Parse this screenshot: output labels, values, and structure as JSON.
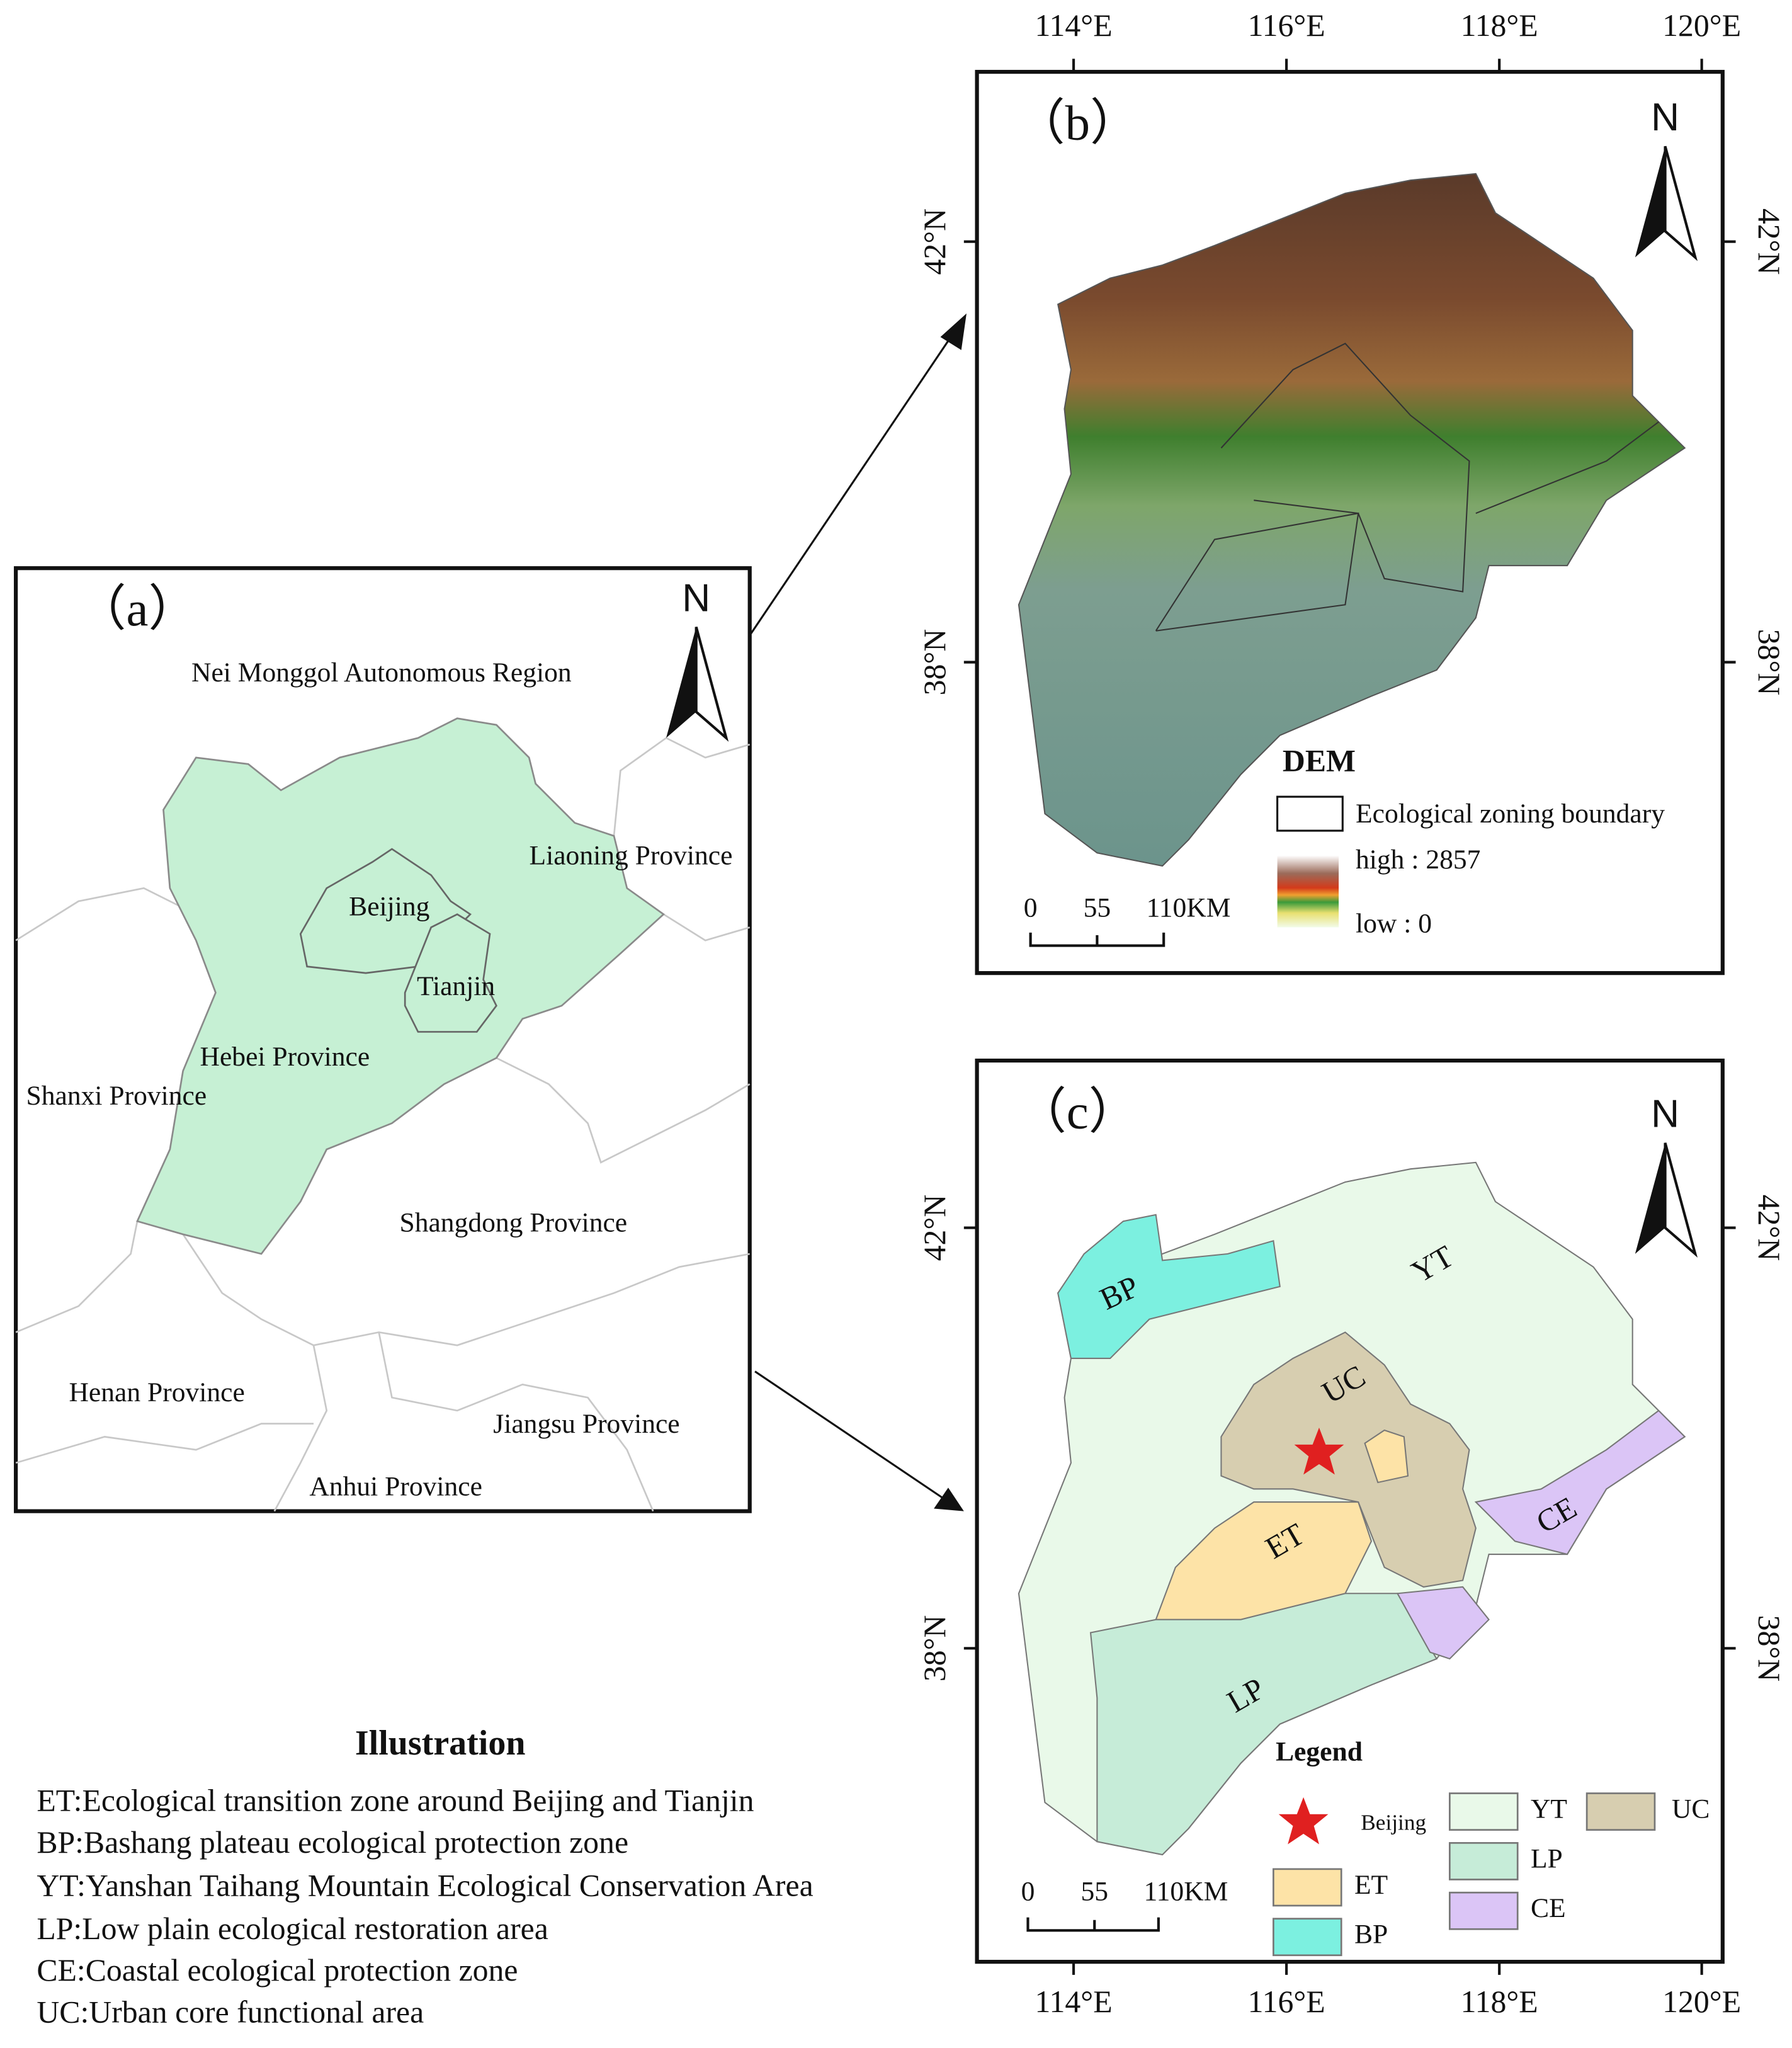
{
  "panel_a": {
    "label": "（a）",
    "north": "N",
    "regions": [
      "Nei Monggol Autonomous Region",
      "Liaoning Province",
      "Beijing",
      "Tianjin",
      "Hebei Province",
      "Shanxi Province",
      "Shangdong Province",
      "Henan Province",
      "Jiangsu Province",
      "Anhui Province"
    ]
  },
  "panel_b": {
    "label": "（b）",
    "north": "N",
    "lon_ticks": [
      "114°E",
      "116°E",
      "118°E",
      "120°E"
    ],
    "lat_ticks": [
      "42°N",
      "38°N"
    ],
    "legend": {
      "title": "DEM",
      "boundary": "Ecological zoning boundary",
      "high": "high : 2857",
      "low": "low : 0"
    },
    "scale": [
      "0",
      "55",
      "110KM"
    ]
  },
  "panel_c": {
    "label": "（c）",
    "north": "N",
    "lon_ticks": [
      "114°E",
      "116°E",
      "118°E",
      "120°E"
    ],
    "lat_ticks": [
      "42°N",
      "38°N"
    ],
    "zones": [
      "BP",
      "YT",
      "UC",
      "ET",
      "CE",
      "LP"
    ],
    "legend": {
      "title": "Legend",
      "beijing": "Beijing",
      "items": [
        "YT",
        "UC",
        "LP",
        "ET",
        "CE",
        "BP"
      ]
    },
    "scale": [
      "0",
      "55",
      "110KM"
    ]
  },
  "illustration": {
    "title": "Illustration",
    "lines": [
      "ET:Ecological transition zone around Beijing and Tianjin",
      "BP:Bashang plateau ecological protection zone",
      "YT:Yanshan Taihang Mountain Ecological Conservation Area",
      "LP:Low plain ecological restoration area",
      "CE:Coastal ecological protection zone",
      "UC:Urban core functional area"
    ]
  }
}
